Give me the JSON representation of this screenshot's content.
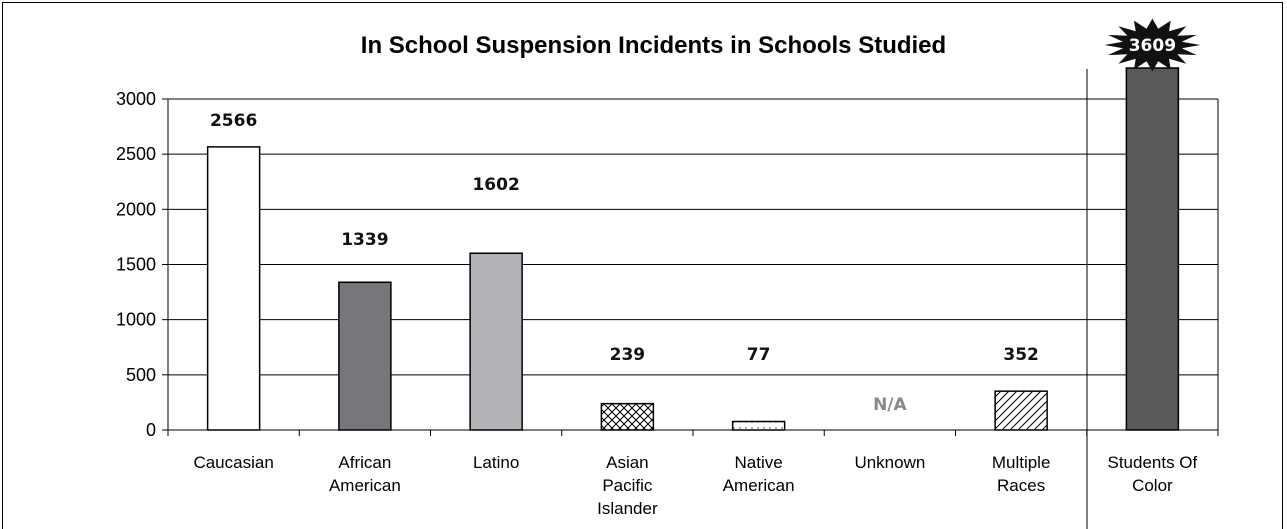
{
  "chart_data": {
    "type": "bar",
    "title": "In School Suspension Incidents in Schools Studied",
    "xlabel": "",
    "ylabel": "",
    "ylim": [
      0,
      3000
    ],
    "yticks": [
      "0",
      "500",
      "1000",
      "1500",
      "2000",
      "2500",
      "3000"
    ],
    "grid": true,
    "categories": [
      [
        "Caucasian"
      ],
      [
        "African",
        "American"
      ],
      [
        "Latino"
      ],
      [
        "Asian",
        "Pacific",
        "Islander"
      ],
      [
        "Native",
        "American"
      ],
      [
        "Unknown"
      ],
      [
        "Multiple",
        "Races"
      ],
      [
        "Students Of",
        "Color"
      ]
    ],
    "values": [
      2566,
      1339,
      1602,
      239,
      77,
      null,
      352,
      3609
    ],
    "data_labels": [
      "2566",
      "1339",
      "1602",
      "239",
      "77",
      "N/A",
      "352",
      "3609"
    ],
    "fills": [
      "white",
      "#76777a",
      "#b3b4b7",
      "crosshatch",
      "dots",
      "none",
      "diagonal",
      "#58595b"
    ],
    "note": ""
  }
}
